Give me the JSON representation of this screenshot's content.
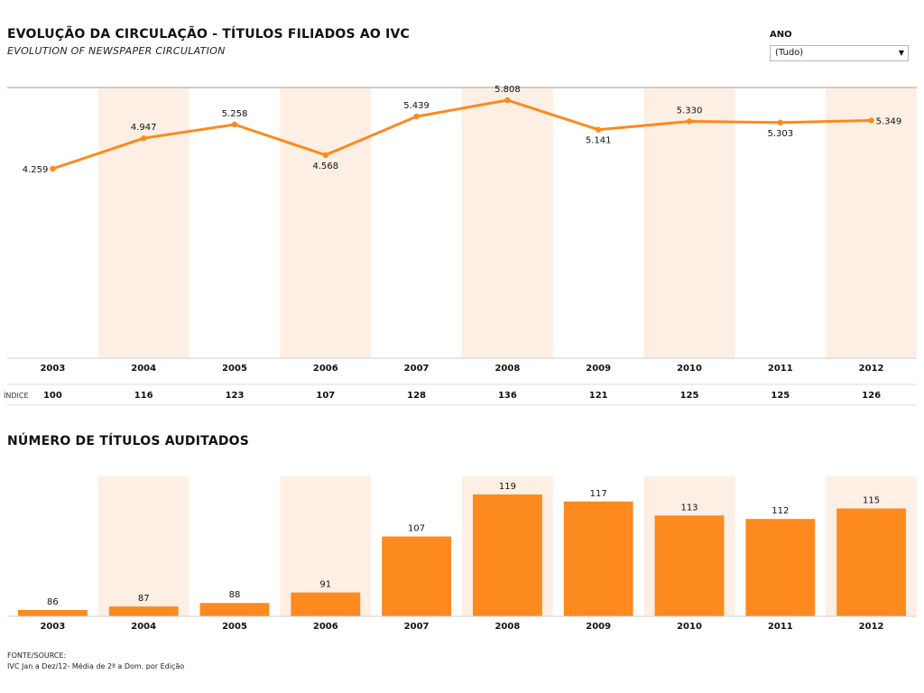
{
  "header": {
    "title": "EVOLUÇÃO DA CIRCULAÇÃO - TÍTULOS FILIADOS AO IVC",
    "subtitle": "EVOLUTION OF NEWSPAPER CIRCULATION"
  },
  "filter": {
    "label": "ANO",
    "selected": "(Tudo)"
  },
  "index_row": {
    "label": "ÍNDICE"
  },
  "section2": {
    "title": "NÚMERO DE TÍTULOS AUDITADOS"
  },
  "source": {
    "line1": "FONTE/SOURCE:",
    "line2": "IVC Jan a Dez/12- Média de 2ª a Dom. por Edição"
  },
  "colors": {
    "accent": "#fc8a1e",
    "band": "#fdefe4"
  },
  "chart_data": [
    {
      "type": "line",
      "title": "EVOLUÇÃO DA CIRCULAÇÃO - TÍTULOS FILIADOS AO IVC",
      "categories": [
        "2003",
        "2004",
        "2005",
        "2006",
        "2007",
        "2008",
        "2009",
        "2010",
        "2011",
        "2012"
      ],
      "values": [
        4.259,
        4.947,
        5.258,
        4.568,
        5.439,
        5.808,
        5.141,
        5.33,
        5.303,
        5.349
      ],
      "labels": [
        "4.259",
        "4.947",
        "5.258",
        "4.568",
        "5.439",
        "5.808",
        "5.141",
        "5.330",
        "5.303",
        "5.349"
      ],
      "index": [
        "100",
        "116",
        "123",
        "107",
        "128",
        "136",
        "121",
        "125",
        "125",
        "126"
      ],
      "grid": false,
      "legend": "none"
    },
    {
      "type": "bar",
      "title": "NÚMERO DE TÍTULOS AUDITADOS",
      "categories": [
        "2003",
        "2004",
        "2005",
        "2006",
        "2007",
        "2008",
        "2009",
        "2010",
        "2011",
        "2012"
      ],
      "values": [
        86,
        87,
        88,
        91,
        107,
        119,
        117,
        113,
        112,
        115
      ],
      "grid": false,
      "legend": "none"
    }
  ]
}
